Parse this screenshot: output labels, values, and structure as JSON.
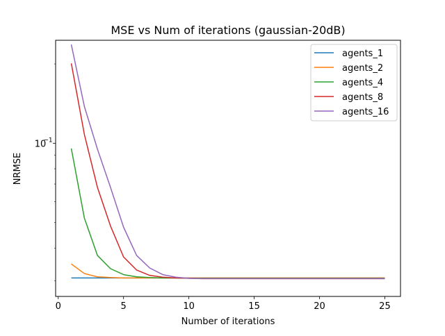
{
  "chart_data": {
    "type": "line",
    "title": "MSE vs Num of iterations (gaussian-20dB)",
    "xlabel": "Number of iterations",
    "ylabel": "NRMSE",
    "x_scale": "linear",
    "y_scale": "log",
    "xlim": [
      -0.2,
      26.2
    ],
    "ylim": [
      0.0262,
      0.246
    ],
    "x_ticks": [
      0,
      5,
      10,
      15,
      20,
      25
    ],
    "x_tick_labels": [
      "0",
      "5",
      "10",
      "15",
      "20",
      "25"
    ],
    "y_ticks": [
      0.1
    ],
    "y_tick_labels": [
      "10",
      "−1"
    ],
    "legend_position": "top-right",
    "grid": false,
    "x": [
      1,
      2,
      3,
      4,
      5,
      6,
      7,
      8,
      9,
      10,
      11,
      12,
      13,
      14,
      15,
      16,
      17,
      18,
      19,
      20,
      21,
      22,
      23,
      24,
      25
    ],
    "series": [
      {
        "name": "agents_1",
        "color": "#1f77b4",
        "values": [
          0.0308,
          0.0308,
          0.0308,
          0.0308,
          0.0308,
          0.0308,
          0.0308,
          0.0308,
          0.0308,
          0.0308,
          0.0308,
          0.0308,
          0.0308,
          0.0308,
          0.0308,
          0.0308,
          0.0308,
          0.0308,
          0.0308,
          0.0308,
          0.0308,
          0.0308,
          0.0308,
          0.0308,
          0.0308
        ]
      },
      {
        "name": "agents_2",
        "color": "#ff7f0e",
        "values": [
          0.0348,
          0.032,
          0.0311,
          0.0309,
          0.0308,
          0.0308,
          0.0308,
          0.0308,
          0.0308,
          0.0308,
          0.0308,
          0.0308,
          0.0308,
          0.0308,
          0.0308,
          0.0308,
          0.0308,
          0.0308,
          0.0308,
          0.0308,
          0.0308,
          0.0308,
          0.0308,
          0.0308,
          0.0308
        ]
      },
      {
        "name": "agents_4",
        "color": "#2ca02c",
        "values": [
          0.0955,
          0.052,
          0.0375,
          0.0334,
          0.0317,
          0.0311,
          0.0309,
          0.0308,
          0.0308,
          0.0307,
          0.0307,
          0.0307,
          0.0307,
          0.0307,
          0.0307,
          0.0307,
          0.0307,
          0.0307,
          0.0307,
          0.0307,
          0.0307,
          0.0307,
          0.0307,
          0.0307,
          0.0307
        ]
      },
      {
        "name": "agents_8",
        "color": "#d62728",
        "values": [
          0.201,
          0.108,
          0.068,
          0.0485,
          0.037,
          0.033,
          0.0315,
          0.031,
          0.0308,
          0.0307,
          0.0306,
          0.0306,
          0.0306,
          0.0306,
          0.0306,
          0.0306,
          0.0306,
          0.0306,
          0.0306,
          0.0306,
          0.0306,
          0.0306,
          0.0306,
          0.0306,
          0.0306
        ]
      },
      {
        "name": "agents_16",
        "color": "#9467bd",
        "values": [
          0.237,
          0.138,
          0.095,
          0.068,
          0.048,
          0.0375,
          0.0336,
          0.0317,
          0.031,
          0.0307,
          0.0306,
          0.0306,
          0.0306,
          0.0306,
          0.0306,
          0.0306,
          0.0306,
          0.0306,
          0.0306,
          0.0306,
          0.0306,
          0.0306,
          0.0306,
          0.0306,
          0.0306
        ]
      }
    ]
  }
}
